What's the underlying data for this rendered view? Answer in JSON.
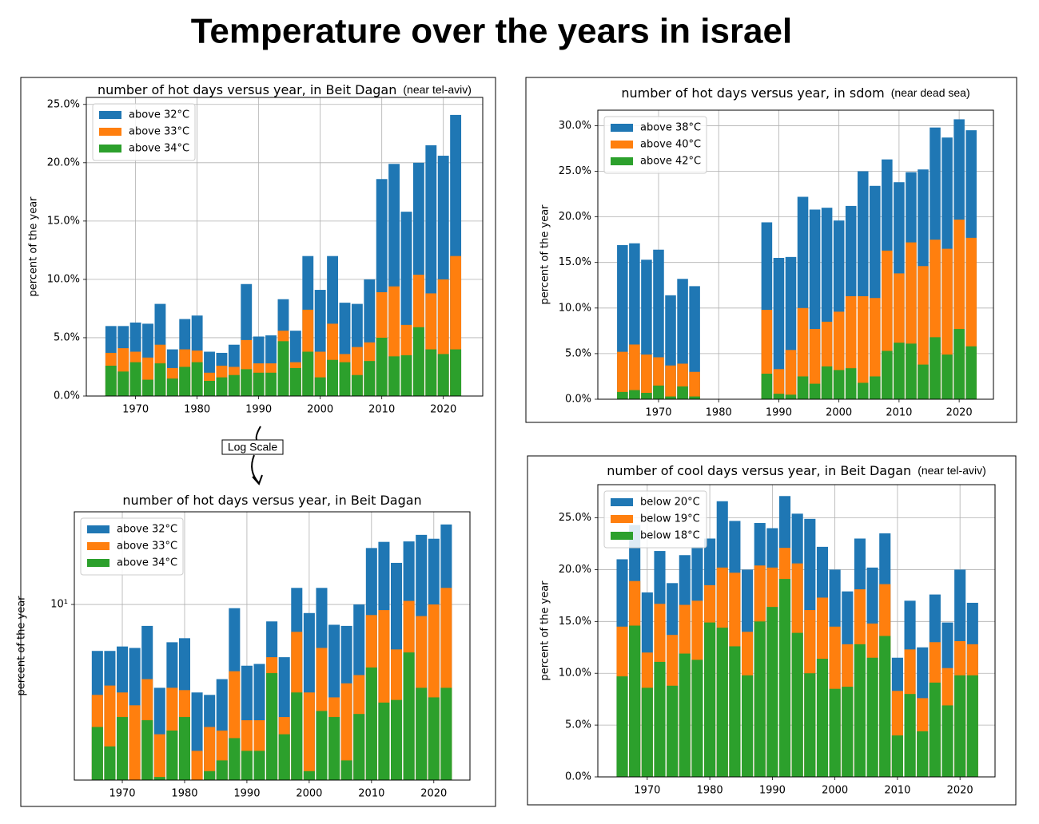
{
  "title": "Temperature over the years in israel",
  "annotation": "Log Scale",
  "chart_data": [
    {
      "type": "bar",
      "title": "number of hot days versus year, in Beit Dagan",
      "title_note": "(near tel-aviv)",
      "y_label": "percent of the year",
      "x": [
        1966,
        1968,
        1970,
        1972,
        1974,
        1976,
        1978,
        1980,
        1982,
        1984,
        1986,
        1988,
        1990,
        1992,
        1994,
        1996,
        1998,
        2000,
        2002,
        2004,
        2006,
        2008,
        2010,
        2012,
        2014,
        2016,
        2018,
        2020,
        2022
      ],
      "series": [
        {
          "name": "above 32°C",
          "color": "#1f77b4",
          "values": [
            6.0,
            6.0,
            6.3,
            6.2,
            7.9,
            4.0,
            6.6,
            6.9,
            3.8,
            3.7,
            4.4,
            9.6,
            5.1,
            5.2,
            8.3,
            5.6,
            12.0,
            9.1,
            12.0,
            8.0,
            7.9,
            10.0,
            18.6,
            19.9,
            15.8,
            20.0,
            21.5,
            20.6,
            24.1
          ]
        },
        {
          "name": "above 33°C",
          "color": "#ff7f0e",
          "values": [
            3.7,
            4.1,
            3.8,
            3.3,
            4.4,
            2.4,
            4.0,
            3.9,
            2.0,
            2.6,
            2.5,
            4.8,
            2.8,
            2.8,
            5.6,
            2.9,
            7.4,
            3.8,
            6.2,
            3.6,
            4.2,
            4.6,
            8.9,
            9.4,
            6.1,
            10.4,
            8.8,
            10.0,
            12.0
          ]
        },
        {
          "name": "above 34°C",
          "color": "#2ca02c",
          "values": [
            2.6,
            2.1,
            2.9,
            1.4,
            2.8,
            1.5,
            2.5,
            2.9,
            1.3,
            1.6,
            1.8,
            2.3,
            2.0,
            2.0,
            4.7,
            2.4,
            3.8,
            1.6,
            3.1,
            2.9,
            1.8,
            3.0,
            5.0,
            3.4,
            3.5,
            5.9,
            4.0,
            3.6,
            4.0
          ]
        }
      ],
      "xlim": [
        1962,
        2026.4
      ],
      "xticks": [
        1970,
        1980,
        1990,
        2000,
        2010,
        2020
      ],
      "ylim": [
        0,
        25.6
      ],
      "yticks": [
        {
          "value": 0,
          "label": "0.0%"
        },
        {
          "value": 5,
          "label": "5.0%"
        },
        {
          "value": 10,
          "label": "10.0%"
        },
        {
          "value": 15,
          "label": "15.0%"
        },
        {
          "value": 20,
          "label": "20.0%"
        },
        {
          "value": 25,
          "label": "25.0%"
        }
      ],
      "grid": true,
      "legend": "upper left"
    },
    {
      "type": "bar",
      "title": "number of hot days versus year, in sdom",
      "title_note": "(near dead sea)",
      "y_label": "percent of the year",
      "x": [
        1964,
        1966,
        1968,
        1970,
        1972,
        1974,
        1976,
        1988,
        1990,
        1992,
        1994,
        1996,
        1998,
        2000,
        2002,
        2004,
        2006,
        2008,
        2010,
        2012,
        2014,
        2016,
        2018,
        2020,
        2022
      ],
      "series": [
        {
          "name": "above 38°C",
          "color": "#1f77b4",
          "values": [
            16.9,
            17.1,
            15.3,
            16.4,
            11.4,
            13.2,
            12.4,
            19.4,
            15.5,
            15.6,
            22.2,
            20.8,
            21.0,
            19.6,
            21.2,
            25.0,
            23.4,
            26.3,
            23.8,
            24.9,
            25.2,
            29.8,
            28.7,
            30.7,
            29.5
          ]
        },
        {
          "name": "above 40°C",
          "color": "#ff7f0e",
          "values": [
            5.2,
            6.0,
            4.9,
            4.6,
            3.7,
            3.9,
            3.0,
            9.8,
            3.3,
            5.4,
            10.0,
            7.7,
            8.5,
            9.6,
            11.3,
            11.3,
            11.1,
            16.3,
            13.8,
            17.2,
            14.6,
            17.5,
            16.5,
            19.7,
            17.7
          ]
        },
        {
          "name": "above 42°C",
          "color": "#2ca02c",
          "values": [
            0.8,
            1.0,
            0.7,
            1.5,
            0.3,
            1.4,
            0.3,
            2.8,
            0.6,
            0.5,
            2.5,
            1.7,
            3.6,
            3.2,
            3.4,
            1.8,
            2.5,
            5.3,
            6.2,
            6.1,
            3.8,
            6.8,
            4.9,
            7.7,
            5.8
          ]
        }
      ],
      "xlim": [
        1959.9,
        2025.7
      ],
      "xticks": [
        1970,
        1980,
        1990,
        2000,
        2010,
        2020
      ],
      "ylim": [
        0,
        31.7
      ],
      "yticks": [
        {
          "value": 0,
          "label": "0.0%"
        },
        {
          "value": 5,
          "label": "5.0%"
        },
        {
          "value": 10,
          "label": "10.0%"
        },
        {
          "value": 15,
          "label": "15.0%"
        },
        {
          "value": 20,
          "label": "20.0%"
        },
        {
          "value": 25,
          "label": "25.0%"
        },
        {
          "value": 30,
          "label": "30.0%"
        }
      ],
      "grid": true,
      "legend": "upper left"
    },
    {
      "type": "bar",
      "title": "number of hot days versus year, in Beit Dagan",
      "y_label": "percent of the year",
      "log_scale": true,
      "x": [
        1966,
        1968,
        1970,
        1972,
        1974,
        1976,
        1978,
        1980,
        1982,
        1984,
        1986,
        1988,
        1990,
        1992,
        1994,
        1996,
        1998,
        2000,
        2002,
        2004,
        2006,
        2008,
        2010,
        2012,
        2014,
        2016,
        2018,
        2020,
        2022
      ],
      "series": [
        {
          "name": "above 32°C",
          "color": "#1f77b4",
          "values": [
            6.0,
            6.0,
            6.3,
            6.2,
            7.9,
            4.0,
            6.6,
            6.9,
            3.8,
            3.7,
            4.4,
            9.6,
            5.1,
            5.2,
            8.3,
            5.6,
            12.0,
            9.1,
            12.0,
            8.0,
            7.9,
            10.0,
            18.6,
            19.9,
            15.8,
            20.0,
            21.5,
            20.6,
            24.1
          ]
        },
        {
          "name": "above 33°C",
          "color": "#ff7f0e",
          "values": [
            3.7,
            4.1,
            3.8,
            3.3,
            4.4,
            2.4,
            4.0,
            3.9,
            2.0,
            2.6,
            2.5,
            4.8,
            2.8,
            2.8,
            5.6,
            2.9,
            7.4,
            3.8,
            6.2,
            3.6,
            4.2,
            4.6,
            8.9,
            9.4,
            6.1,
            10.4,
            8.8,
            10.0,
            12.0
          ]
        },
        {
          "name": "above 34°C",
          "color": "#2ca02c",
          "values": [
            2.6,
            2.1,
            2.9,
            1.4,
            2.8,
            1.5,
            2.5,
            2.9,
            1.3,
            1.6,
            1.8,
            2.3,
            2.0,
            2.0,
            4.7,
            2.4,
            3.8,
            1.6,
            3.1,
            2.9,
            1.8,
            3.0,
            5.0,
            3.4,
            3.5,
            5.9,
            4.0,
            3.6,
            4.0
          ]
        }
      ],
      "xlim": [
        1962.3,
        2025.8
      ],
      "xticks": [
        1970,
        1980,
        1990,
        2000,
        2010,
        2020
      ],
      "ylim": [
        1.45,
        27.7
      ],
      "yticks": [
        {
          "value": 10,
          "label": "10¹"
        }
      ],
      "grid": true,
      "legend": "upper left"
    },
    {
      "type": "bar",
      "title": "number of cool days versus year, in Beit Dagan",
      "title_note": "(near tel-aviv)",
      "y_label": "percent of the year",
      "x": [
        1966,
        1968,
        1970,
        1972,
        1974,
        1976,
        1978,
        1980,
        1982,
        1984,
        1986,
        1988,
        1990,
        1992,
        1994,
        1996,
        1998,
        2000,
        2002,
        2004,
        2006,
        2008,
        2010,
        2012,
        2014,
        2016,
        2018,
        2020,
        2022
      ],
      "series": [
        {
          "name": "below 20°C",
          "color": "#1f77b4",
          "values": [
            21.0,
            24.3,
            17.8,
            21.8,
            18.7,
            21.4,
            22.2,
            23.0,
            26.6,
            24.7,
            20.0,
            24.5,
            24.0,
            27.1,
            25.4,
            24.9,
            22.2,
            20.0,
            17.9,
            23.0,
            20.2,
            23.5,
            11.5,
            17.0,
            12.5,
            17.6,
            14.9,
            20.0,
            16.8
          ]
        },
        {
          "name": "below 19°C",
          "color": "#ff7f0e",
          "values": [
            14.5,
            18.9,
            12.0,
            16.7,
            13.7,
            16.6,
            17.0,
            18.5,
            20.2,
            19.7,
            14.0,
            20.4,
            20.2,
            22.1,
            20.6,
            16.1,
            17.3,
            14.5,
            12.8,
            18.1,
            14.8,
            18.6,
            8.3,
            12.3,
            7.6,
            13.0,
            10.5,
            13.1,
            12.8
          ]
        },
        {
          "name": "below 18°C",
          "color": "#2ca02c",
          "values": [
            9.7,
            14.6,
            8.6,
            11.1,
            8.8,
            11.9,
            11.3,
            14.9,
            14.4,
            12.6,
            9.8,
            15.0,
            16.4,
            19.1,
            13.9,
            10.0,
            11.4,
            8.5,
            8.7,
            12.8,
            11.5,
            13.6,
            4.0,
            8.0,
            4.4,
            9.1,
            6.9,
            9.8,
            9.8
          ]
        }
      ],
      "xlim": [
        1962.1,
        2025.6
      ],
      "xticks": [
        1970,
        1980,
        1990,
        2000,
        2010,
        2020
      ],
      "ylim": [
        0,
        28.2
      ],
      "yticks": [
        {
          "value": 0,
          "label": "0.0%"
        },
        {
          "value": 5,
          "label": "5.0%"
        },
        {
          "value": 10,
          "label": "10.0%"
        },
        {
          "value": 15,
          "label": "15.0%"
        },
        {
          "value": 20,
          "label": "20.0%"
        },
        {
          "value": 25,
          "label": "25.0%"
        }
      ],
      "grid": true,
      "legend": "upper left"
    }
  ]
}
